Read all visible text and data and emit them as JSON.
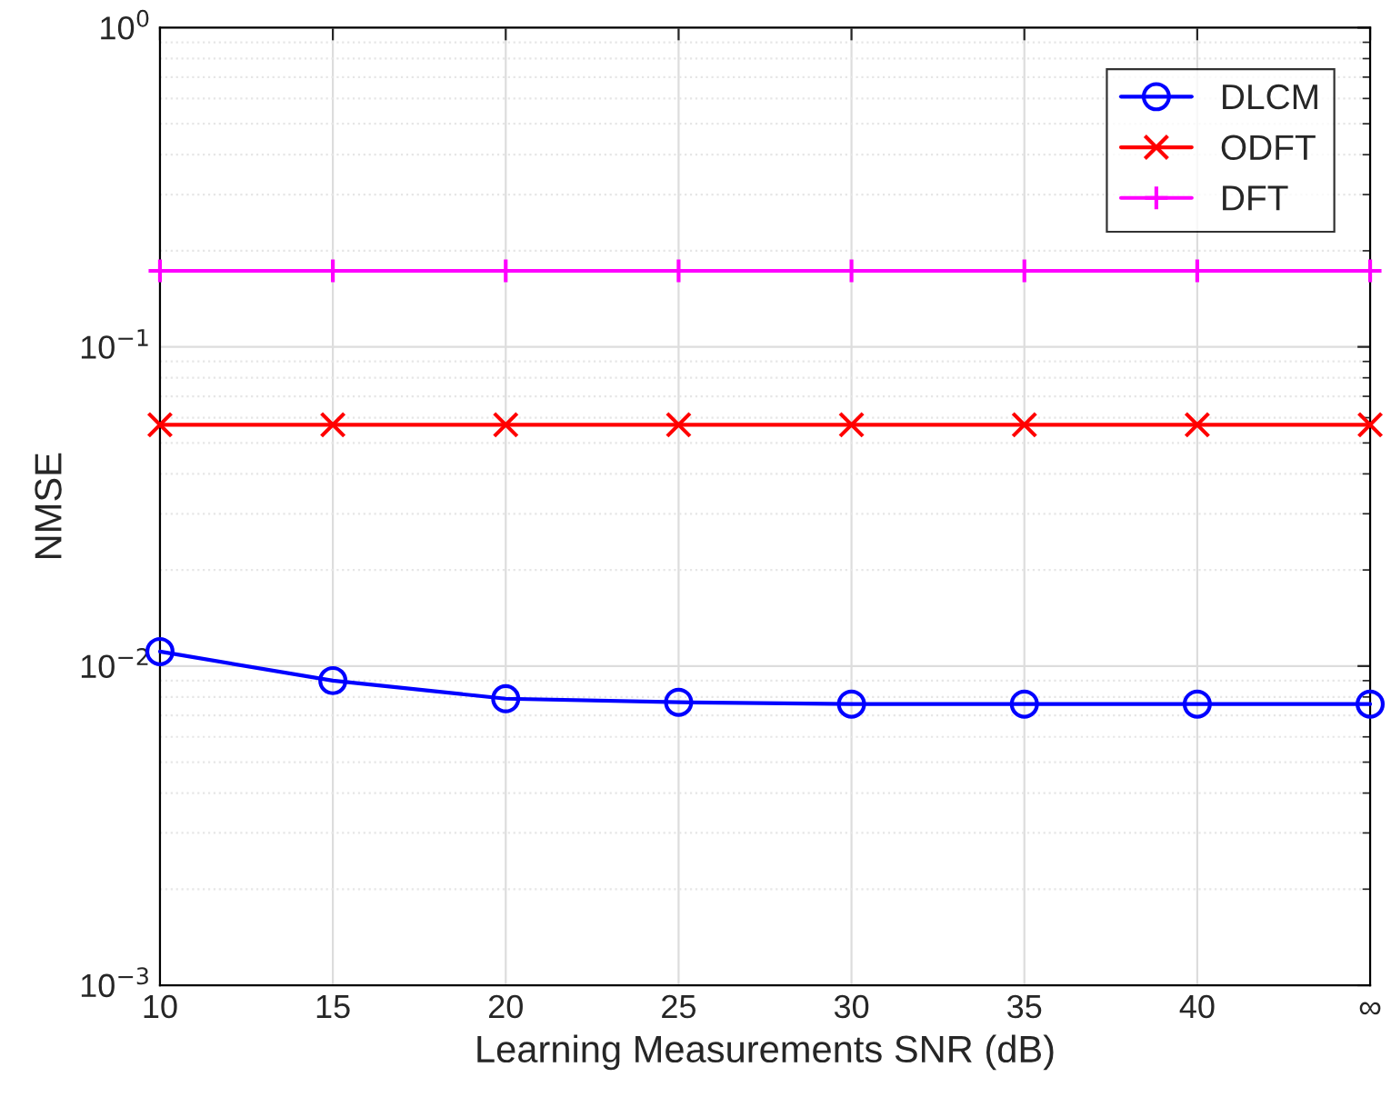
{
  "chart_data": {
    "type": "line",
    "xlabel": "Learning Measurements SNR (dB)",
    "ylabel": "NMSE",
    "log": "y",
    "grid": true,
    "legend": "top right",
    "x": [
      10,
      15,
      20,
      25,
      30,
      35,
      40,
      45
    ],
    "xlim": [
      10,
      45
    ],
    "xticks": [
      10,
      15,
      20,
      25,
      30,
      35,
      40,
      {
        "value": 45,
        "label": "∞"
      }
    ],
    "ylim": [
      0.001,
      1
    ],
    "yticks": [
      {
        "value": 0.001,
        "label": "10$^{−3}$"
      },
      {
        "value": 0.01,
        "label": "10$^{−2}$"
      },
      {
        "value": 0.1,
        "label": "10$^{−1}$"
      },
      {
        "value": 1,
        "label": "10$^{0}$"
      }
    ],
    "series": [
      {
        "name": "DLCM",
        "color": "#0000ff",
        "marker": "circle",
        "values": [
          0.0111,
          0.009,
          0.0079,
          0.0077,
          0.0076,
          0.0076,
          0.0076,
          0.0076
        ]
      },
      {
        "name": "ODFT",
        "color": "#ff0000",
        "marker": "cross",
        "values": [
          0.057,
          0.057,
          0.057,
          0.057,
          0.057,
          0.057,
          0.057,
          0.057
        ]
      },
      {
        "name": "DFT",
        "color": "#ff00ff",
        "marker": "plus",
        "values": [
          0.173,
          0.173,
          0.173,
          0.173,
          0.173,
          0.173,
          0.173,
          0.173
        ]
      }
    ]
  }
}
